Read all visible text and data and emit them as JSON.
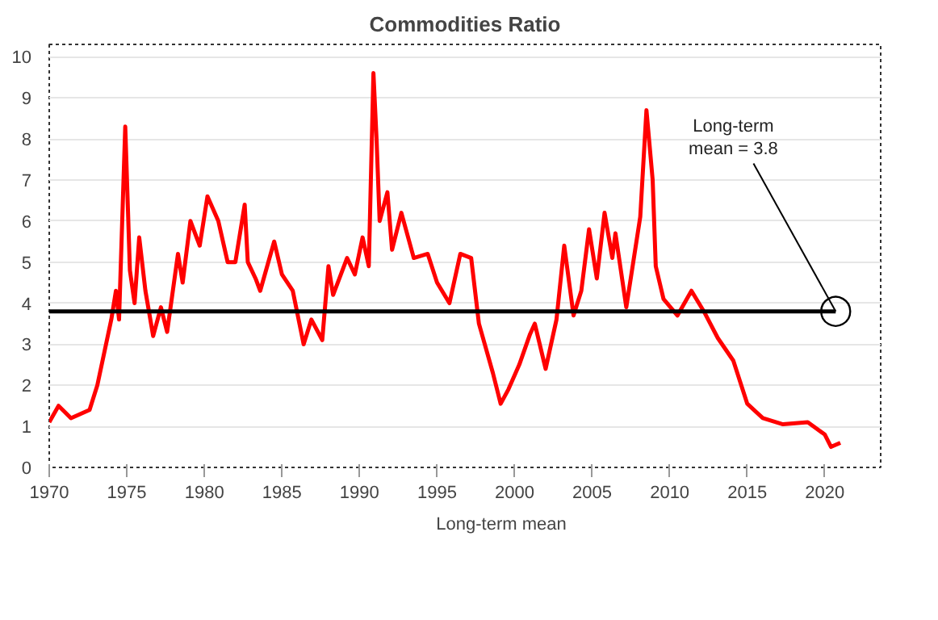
{
  "chart_data": {
    "type": "line",
    "title": "Commodities Ratio",
    "xlim": [
      1970,
      2023.6
    ],
    "ylim": [
      0,
      10.3
    ],
    "xticks": [
      1970,
      1975,
      1980,
      1985,
      1990,
      1995,
      2000,
      2005,
      2010,
      2015,
      2020
    ],
    "yticks": [
      0,
      1,
      2,
      3,
      4,
      5,
      6,
      7,
      8,
      9,
      10
    ],
    "grid": "y",
    "legend": "bottom",
    "line_style": "solid",
    "series": [
      {
        "color": "#ff0000",
        "x": [
          1970,
          1970.6,
          1971.4,
          1972.6,
          1973.1,
          1974,
          1974.3,
          1974.5,
          1974.9,
          1975.2,
          1975.5,
          1975.8,
          1976.2,
          1976.7,
          1977.2,
          1977.6,
          1978.3,
          1978.6,
          1979.1,
          1979.7,
          1980.2,
          1980.9,
          1981.5,
          1982,
          1982.6,
          1982.8,
          1983.3,
          1983.6,
          1984.5,
          1985,
          1985.7,
          1986.4,
          1986.9,
          1987.6,
          1988,
          1988.3,
          1989.2,
          1989.7,
          1990.2,
          1990.6,
          1990.9,
          1991.1,
          1991.3,
          1991.8,
          1992.1,
          1992.7,
          1993.5,
          1994.4,
          1995,
          1995.8,
          1996.5,
          1997.2,
          1997.7,
          1998.6,
          1999.1,
          1999.6,
          2000.3,
          2001,
          2001.3,
          2002,
          2002.7,
          2003.2,
          2003.8,
          2004.3,
          2004.8,
          2005.3,
          2005.8,
          2006.3,
          2006.5,
          2007.2,
          2008.1,
          2008.5,
          2008.9,
          2009.1,
          2009.6,
          2010.5,
          2011.4,
          2012.2,
          2013.1,
          2014.1,
          2015,
          2016,
          2017.3,
          2018.9,
          2020,
          2020.4,
          2021
        ],
        "values": [
          1.1,
          1.5,
          1.2,
          1.4,
          2.0,
          3.6,
          4.3,
          3.6,
          8.3,
          4.8,
          4.0,
          5.6,
          4.3,
          3.2,
          3.9,
          3.3,
          5.2,
          4.5,
          6.0,
          5.4,
          6.6,
          6.0,
          5.0,
          5.0,
          6.4,
          5.0,
          4.6,
          4.3,
          5.5,
          4.7,
          4.3,
          3.0,
          3.6,
          3.1,
          4.9,
          4.2,
          5.1,
          4.7,
          5.6,
          4.9,
          9.6,
          8.0,
          6.0,
          6.7,
          5.3,
          6.2,
          5.1,
          5.2,
          4.5,
          4.0,
          5.2,
          5.1,
          3.5,
          2.3,
          1.55,
          1.9,
          2.5,
          3.25,
          3.5,
          2.4,
          3.6,
          5.4,
          3.7,
          4.3,
          5.8,
          4.6,
          6.2,
          5.1,
          5.7,
          3.9,
          6.1,
          8.7,
          7.0,
          4.9,
          4.1,
          3.7,
          4.3,
          3.8,
          3.15,
          2.6,
          1.55,
          1.2,
          1.05,
          1.1,
          0.8,
          0.5,
          0.6
        ]
      },
      {
        "name": "Long-term mean",
        "color": "#000000",
        "x": [
          1970,
          2020.7
        ],
        "values": [
          3.8,
          3.8
        ]
      }
    ],
    "annotations": [
      {
        "text": "Long-term\nmean = 3.8",
        "x": 2020.7,
        "y": 3.8
      }
    ]
  }
}
